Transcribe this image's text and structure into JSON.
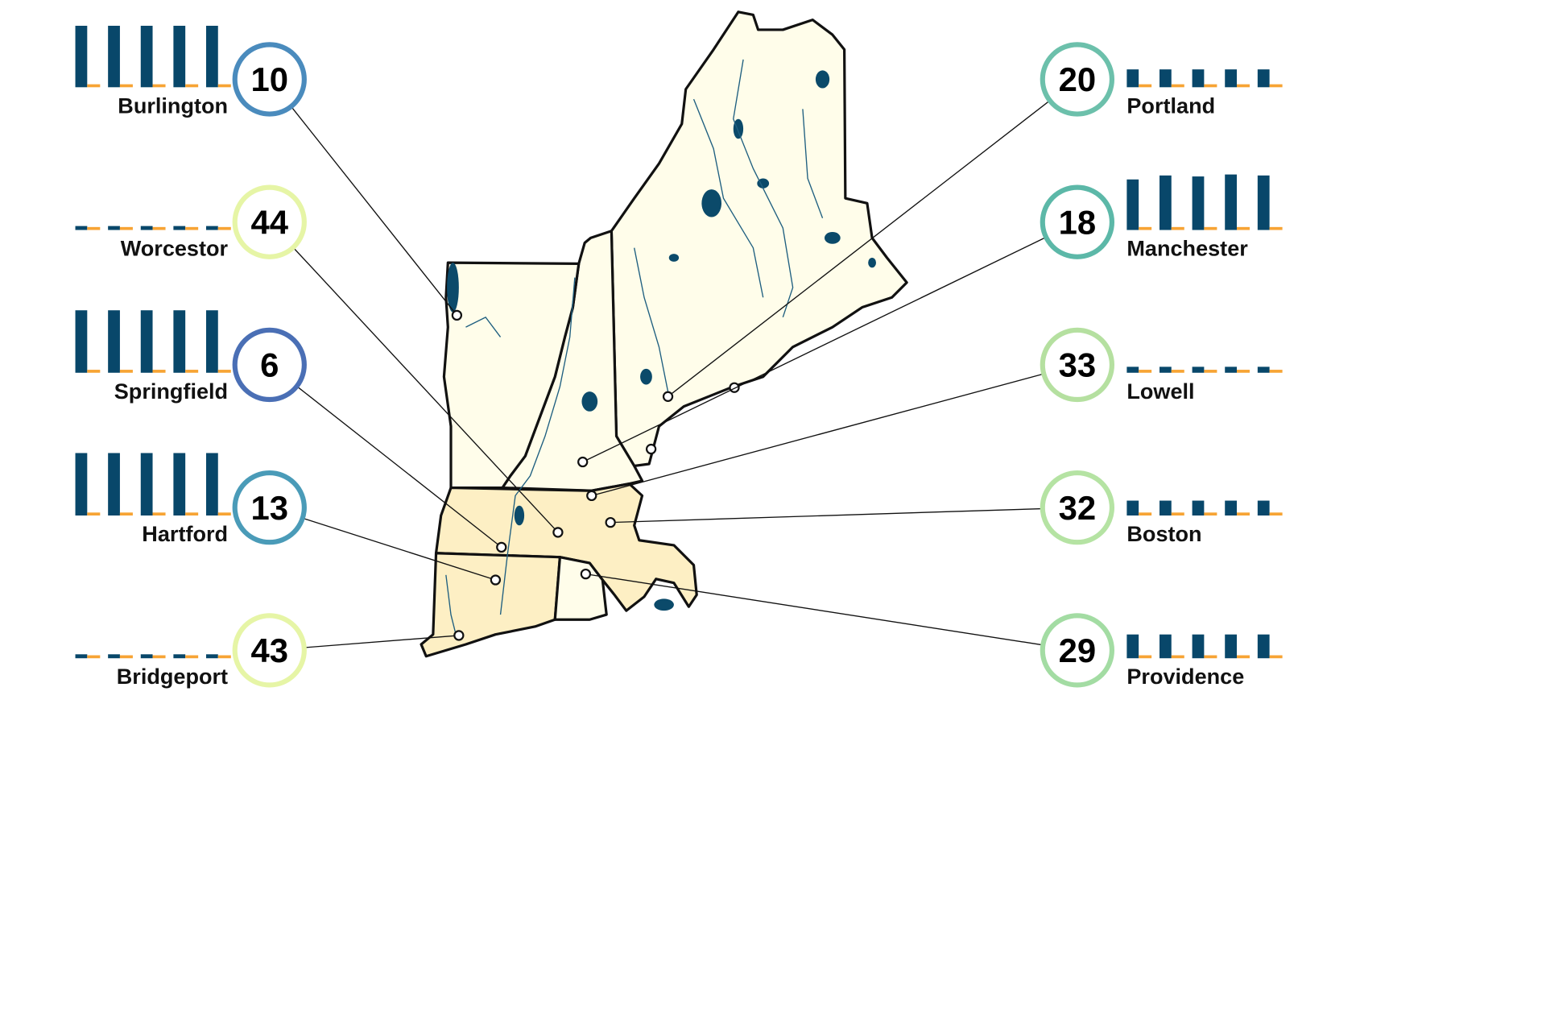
{
  "colors": {
    "bar": "#08476a",
    "bar_base": "#f7a434",
    "land": "#fffdea",
    "land_warm": "#fdefc4",
    "water": "#0b4a6a"
  },
  "cities": [
    {
      "name": "Burlington",
      "value": "10",
      "ring_color": "#4a8bbd",
      "side": "left",
      "bars": [
        62,
        62,
        62,
        62,
        62
      ],
      "point": [
        461,
        318
      ]
    },
    {
      "name": "Worcestor",
      "value": "44",
      "ring_color": "#e6f5a6",
      "side": "left",
      "bars": [
        4,
        4,
        4,
        4,
        4
      ],
      "point": [
        563,
        537
      ]
    },
    {
      "name": "Springfield",
      "value": "6",
      "ring_color": "#4a6fb5",
      "side": "left",
      "bars": [
        63,
        63,
        63,
        63,
        63
      ],
      "point": [
        506,
        552
      ]
    },
    {
      "name": "Hartford",
      "value": "13",
      "ring_color": "#4a9bb8",
      "side": "left",
      "bars": [
        63,
        63,
        63,
        63,
        63
      ],
      "point": [
        500,
        585
      ]
    },
    {
      "name": "Bridgeport",
      "value": "43",
      "ring_color": "#e6f5a6",
      "side": "left",
      "bars": [
        4,
        4,
        4,
        4,
        4
      ],
      "point": [
        463,
        641
      ]
    },
    {
      "name": "Portland",
      "value": "20",
      "ring_color": "#6cc0ab",
      "side": "right",
      "bars": [
        18,
        18,
        18,
        18,
        18
      ],
      "point": [
        674,
        400
      ]
    },
    {
      "name": "Manchester",
      "value": "18",
      "ring_color": "#5cb8a8",
      "side": "right",
      "bars": [
        51,
        55,
        54,
        56,
        55
      ],
      "point": [
        588,
        466
      ]
    },
    {
      "name": "Lowell",
      "value": "33",
      "ring_color": "#b5e0a0",
      "side": "right",
      "bars": [
        6,
        6,
        6,
        6,
        6
      ],
      "point": [
        597,
        500
      ]
    },
    {
      "name": "Boston",
      "value": "32",
      "ring_color": "#b5e3a3",
      "side": "right",
      "bars": [
        15,
        15,
        15,
        15,
        15
      ],
      "point": [
        616,
        527
      ]
    },
    {
      "name": "Providence",
      "value": "29",
      "ring_color": "#a3dca3",
      "side": "right",
      "bars": [
        24,
        24,
        24,
        24,
        24
      ],
      "point": [
        591,
        579
      ]
    }
  ]
}
